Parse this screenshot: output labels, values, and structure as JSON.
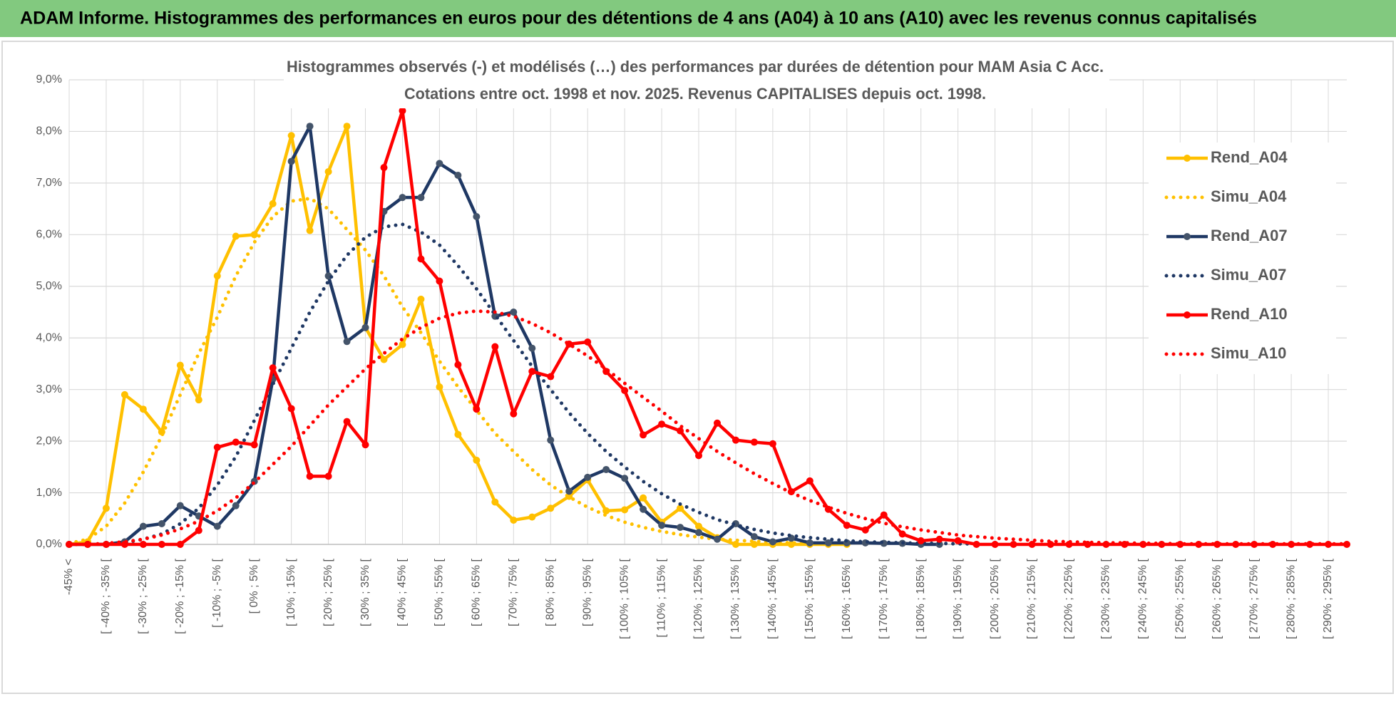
{
  "header": {
    "title": "ADAM Informe. Histogrammes des performances en euros pour des détentions de 4 ans (A04) à 10 ans (A10) avec les revenus connus capitalisés"
  },
  "chart_data": {
    "type": "line",
    "title": "Histogrammes observés (-) et modélisés (…) des performances par durées de détention pour MAM Asia C Acc.",
    "subtitle": "Cotations entre oct. 1998 et nov. 2025.  Revenus CAPITALISES depuis oct. 1998.",
    "categories": [
      "-45% <",
      null,
      "[ -40% ; -35% [",
      null,
      "[ -30% ; -25% [",
      null,
      "[ -20% ; -15% [",
      null,
      "[ -10% ; -5% [",
      null,
      "[ 0% ; 5% [",
      null,
      "[ 10% ; 15% [",
      null,
      "[ 20% ; 25% [",
      null,
      "[ 30% ; 35% [",
      null,
      "[ 40% ; 45% [",
      null,
      "[ 50% ; 55% [",
      null,
      "[ 60% ; 65% [",
      null,
      "[ 70% ; 75% [",
      null,
      "[ 80% ; 85% [",
      null,
      "[ 90% ; 95% [",
      null,
      "[ 100% ; 105% [",
      null,
      "[ 110% ; 115% [",
      null,
      "[ 120% ; 125% [",
      null,
      "[ 130% ; 135% [",
      null,
      "[ 140% ; 145% [",
      null,
      "[ 150% ; 155% [",
      null,
      "[ 160% ; 165% [",
      null,
      "[ 170% ; 175% [",
      null,
      "[ 180% ; 185% [",
      null,
      "[ 190% ; 195% [",
      null,
      "[ 200% ; 205% [",
      null,
      "[ 210% ; 215% [",
      null,
      "[ 220% ; 225% [",
      null,
      "[ 230% ; 235% [",
      null,
      "[ 240% ; 245% [",
      null,
      "[ 250% ; 255% [",
      null,
      "[ 260% ; 265% [",
      null,
      "[ 270% ; 275% [",
      null,
      "[ 280% ; 285% [",
      null,
      "[ 290% ; 295% [",
      null
    ],
    "series": [
      {
        "name": "Rend_A04",
        "color": "#FFC000",
        "marker_color": "#FFC000",
        "markers": true,
        "line_style": "solid",
        "values": [
          0,
          0.05,
          0.7,
          2.9,
          2.62,
          2.18,
          3.47,
          2.8,
          5.2,
          5.97,
          6.0,
          6.6,
          7.92,
          6.08,
          7.22,
          8.1,
          4.2,
          3.58,
          3.87,
          4.75,
          3.05,
          2.13,
          1.63,
          0.82,
          0.47,
          0.53,
          0.7,
          0.93,
          1.25,
          0.65,
          0.67,
          0.9,
          0.43,
          0.7,
          0.35,
          0.13,
          0,
          0,
          0,
          0,
          0,
          0,
          0,
          null,
          null,
          null,
          null,
          null,
          null,
          null,
          null,
          null,
          null,
          null,
          null,
          null,
          null,
          null,
          null,
          null,
          null,
          null,
          null,
          null,
          null,
          null,
          null,
          null,
          null,
          null
        ]
      },
      {
        "name": "Simu_A04",
        "color": "#FFC000",
        "markers": false,
        "line_style": "dotted",
        "values": [
          0.02,
          0.1,
          0.35,
          0.8,
          1.4,
          2.1,
          2.9,
          3.7,
          4.4,
          5.2,
          5.85,
          6.35,
          6.65,
          6.7,
          6.5,
          6.1,
          5.7,
          5.2,
          4.6,
          4.1,
          3.55,
          3.05,
          2.6,
          2.15,
          1.8,
          1.45,
          1.15,
          0.92,
          0.72,
          0.56,
          0.43,
          0.33,
          0.25,
          0.19,
          0.14,
          0.1,
          0.08,
          0.06,
          0.04,
          0.03,
          0.02,
          0.02,
          0.01,
          null,
          null,
          null,
          null,
          null,
          null,
          null,
          null,
          null,
          null,
          null,
          null,
          null,
          null,
          null,
          null,
          null,
          null,
          null,
          null,
          null,
          null,
          null,
          null,
          null,
          null,
          null
        ]
      },
      {
        "name": "Rend_A07",
        "color": "#1F3864",
        "marker_color": "#44546A",
        "markers": true,
        "line_style": "solid",
        "values": [
          0,
          0,
          0,
          0.05,
          0.35,
          0.4,
          0.75,
          0.55,
          0.35,
          0.75,
          1.22,
          3.2,
          7.42,
          8.1,
          5.2,
          3.93,
          4.2,
          6.45,
          6.72,
          6.72,
          7.38,
          7.15,
          6.35,
          4.42,
          4.5,
          3.8,
          2.02,
          1.03,
          1.3,
          1.45,
          1.28,
          0.68,
          0.37,
          0.33,
          0.23,
          0.1,
          0.4,
          0.15,
          0.05,
          0.12,
          0.03,
          0.03,
          0.03,
          0.03,
          0.02,
          0.02,
          0,
          0,
          null,
          null,
          null,
          null,
          null,
          null,
          null,
          null,
          null,
          null,
          null,
          null,
          null,
          null,
          null,
          null,
          null,
          null,
          null,
          null,
          null,
          null
        ]
      },
      {
        "name": "Simu_A07",
        "color": "#1F3864",
        "markers": false,
        "line_style": "dotted",
        "values": [
          0,
          0,
          0.01,
          0.03,
          0.1,
          0.2,
          0.4,
          0.7,
          1.15,
          1.7,
          2.4,
          3.1,
          3.8,
          4.5,
          5.1,
          5.6,
          5.95,
          6.15,
          6.2,
          6.05,
          5.8,
          5.4,
          4.95,
          4.45,
          3.95,
          3.45,
          3.0,
          2.55,
          2.15,
          1.8,
          1.5,
          1.22,
          0.98,
          0.78,
          0.62,
          0.48,
          0.38,
          0.29,
          0.22,
          0.17,
          0.13,
          0.1,
          0.07,
          0.05,
          0.04,
          0.03,
          0.02,
          0.02,
          0.01,
          0.01,
          null,
          null,
          null,
          null,
          null,
          null,
          null,
          null,
          null,
          null,
          null,
          null,
          null,
          null,
          null,
          null,
          null,
          null,
          null,
          null
        ]
      },
      {
        "name": "Rend_A10",
        "color": "#FF0000",
        "marker_color": "#FF0000",
        "markers": true,
        "line_style": "solid",
        "values": [
          0,
          0,
          0,
          0,
          0,
          0,
          0,
          0.27,
          1.88,
          1.98,
          1.93,
          3.42,
          2.63,
          1.32,
          1.32,
          2.38,
          1.93,
          7.3,
          8.4,
          5.53,
          5.1,
          3.48,
          2.62,
          3.83,
          2.53,
          3.35,
          3.25,
          3.88,
          3.92,
          3.35,
          2.98,
          2.12,
          2.33,
          2.2,
          1.72,
          2.35,
          2.02,
          1.98,
          1.95,
          1.02,
          1.23,
          0.68,
          0.37,
          0.28,
          0.57,
          0.2,
          0.07,
          0.1,
          0.07,
          0,
          0,
          0,
          0,
          0,
          0,
          0,
          0,
          0,
          0,
          0,
          0,
          0,
          0,
          0,
          0,
          0,
          0,
          0,
          0,
          0
        ]
      },
      {
        "name": "Simu_A10",
        "color": "#FF0000",
        "markers": false,
        "line_style": "dotted",
        "values": [
          0,
          0,
          0.02,
          0.05,
          0.1,
          0.18,
          0.3,
          0.45,
          0.65,
          0.9,
          1.2,
          1.55,
          1.9,
          2.3,
          2.7,
          3.05,
          3.4,
          3.7,
          3.98,
          4.2,
          4.38,
          4.48,
          4.52,
          4.5,
          4.42,
          4.28,
          4.1,
          3.88,
          3.65,
          3.4,
          3.12,
          2.85,
          2.58,
          2.3,
          2.05,
          1.8,
          1.58,
          1.37,
          1.18,
          1.0,
          0.85,
          0.72,
          0.6,
          0.5,
          0.41,
          0.34,
          0.28,
          0.23,
          0.18,
          0.15,
          0.12,
          0.1,
          0.08,
          0.06,
          0.05,
          0.04,
          0.03,
          0.03,
          0.02,
          0.02,
          0.01,
          0.01,
          0.01,
          0.01,
          0.01,
          0.01,
          0.01,
          0.01,
          0.01,
          0.01
        ]
      }
    ],
    "ylim": [
      0,
      9
    ],
    "yticks": [
      {
        "value": 0,
        "label": "0,0%"
      },
      {
        "value": 1,
        "label": "1,0%"
      },
      {
        "value": 2,
        "label": "2,0%"
      },
      {
        "value": 3,
        "label": "3,0%"
      },
      {
        "value": 4,
        "label": "4,0%"
      },
      {
        "value": 5,
        "label": "5,0%"
      },
      {
        "value": 6,
        "label": "6,0%"
      },
      {
        "value": 7,
        "label": "7,0%"
      },
      {
        "value": 8,
        "label": "8,0%"
      },
      {
        "value": 9,
        "label": "9,0%"
      }
    ],
    "grid": true,
    "legend_position": "upper right"
  }
}
